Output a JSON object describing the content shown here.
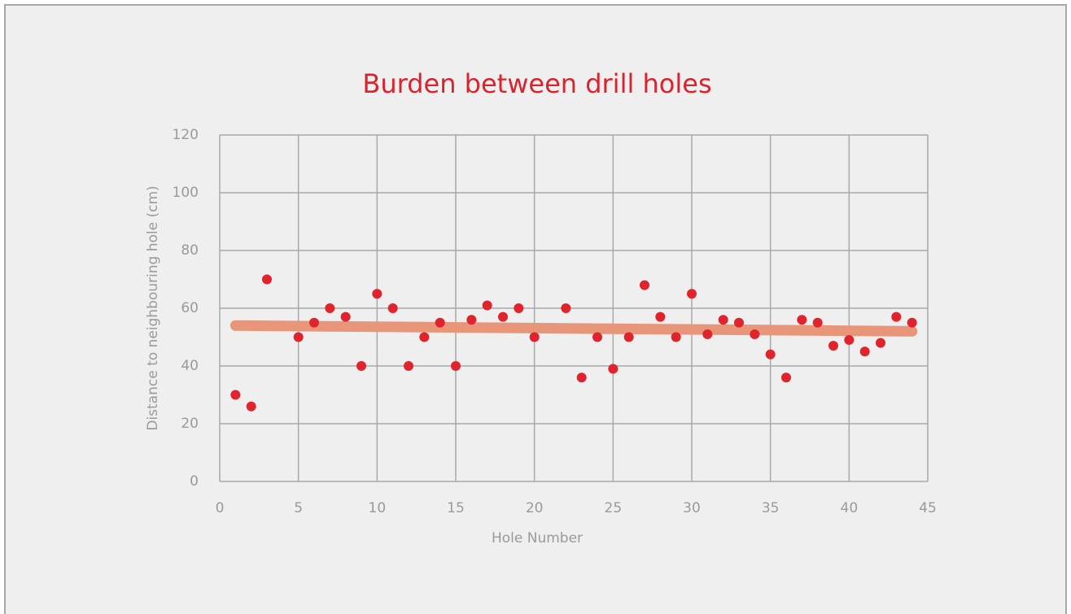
{
  "chart_data": {
    "type": "scatter",
    "title": "Burden between drill holes",
    "x_label": "Hole Number",
    "y_label": "Distance to neighbouring hole (cm)",
    "xlim": [
      0,
      45
    ],
    "xticks": [
      0,
      5,
      10,
      15,
      20,
      25,
      30,
      35,
      40,
      45
    ],
    "ylim": [
      0,
      120
    ],
    "yticks": [
      0,
      20,
      40,
      60,
      80,
      100,
      120
    ],
    "grid": true,
    "series": [
      {
        "color": "#e0242d",
        "x": [
          1,
          2,
          3,
          5,
          6,
          7,
          8,
          9,
          10,
          11,
          12,
          13,
          14,
          15,
          16,
          17,
          18,
          19,
          20,
          22,
          23,
          24,
          25,
          26,
          27,
          28,
          29,
          30,
          31,
          32,
          33,
          34,
          35,
          36,
          37,
          38,
          39,
          40,
          41,
          42,
          43,
          44
        ],
        "values": [
          30,
          26,
          70,
          50,
          55,
          60,
          57,
          40,
          65,
          60,
          40,
          50,
          55,
          40,
          56,
          61,
          57,
          60,
          50,
          60,
          36,
          50,
          39,
          50,
          68,
          57,
          50,
          65,
          51,
          56,
          55,
          51,
          44,
          36,
          56,
          55,
          47,
          49,
          45,
          48,
          57,
          55
        ]
      },
      {
        "type": "line",
        "color": "#e8967a",
        "x": [
          1,
          44
        ],
        "values": [
          54,
          52
        ]
      }
    ]
  }
}
